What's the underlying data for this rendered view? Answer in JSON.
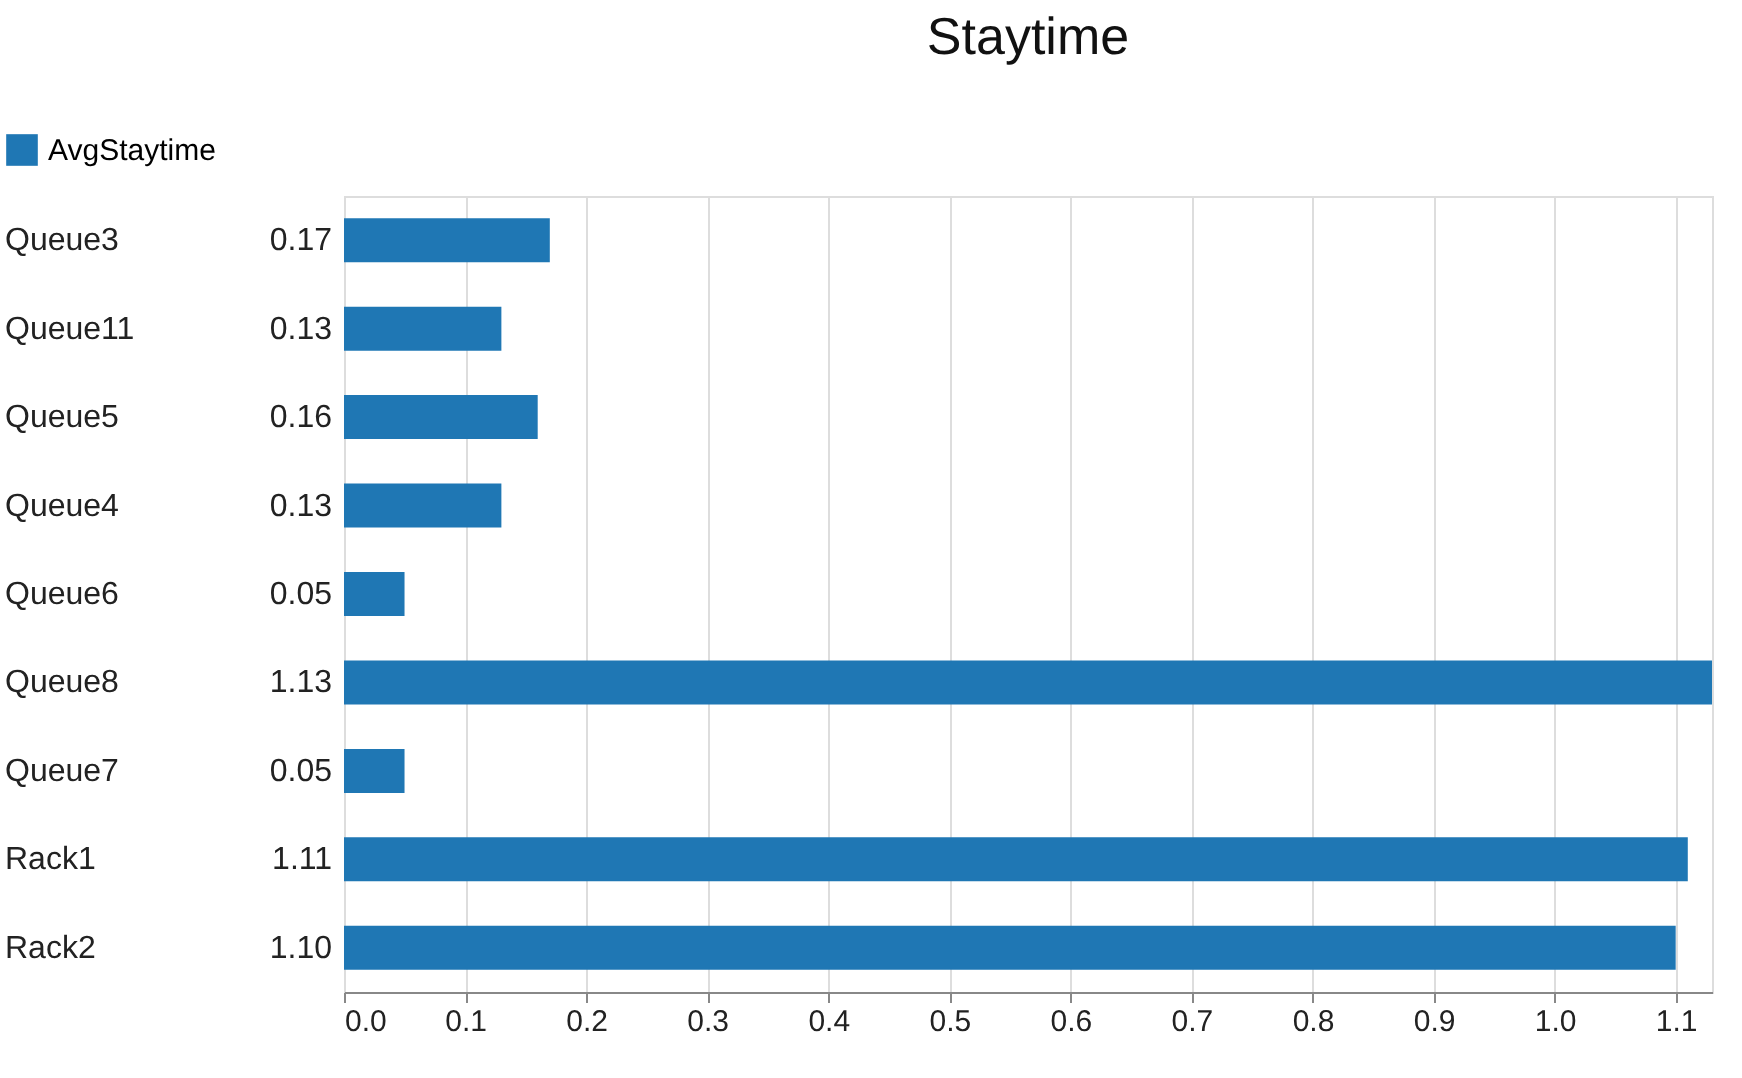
{
  "chart_data": {
    "type": "bar",
    "orientation": "horizontal",
    "title": "Staytime",
    "categories": [
      "Queue3",
      "Queue11",
      "Queue5",
      "Queue4",
      "Queue6",
      "Queue8",
      "Queue7",
      "Rack1",
      "Rack2"
    ],
    "series": [
      {
        "name": "AvgStaytime",
        "color": "#1f77b4",
        "values": [
          0.17,
          0.13,
          0.16,
          0.13,
          0.05,
          1.13,
          0.05,
          1.11,
          1.1
        ],
        "value_labels": [
          "0.17",
          "0.13",
          "0.16",
          "0.13",
          "0.05",
          "1.13",
          "0.05",
          "1.11",
          "1.10"
        ]
      }
    ],
    "xlim": [
      0,
      1.13
    ],
    "xticks": [
      {
        "value": 0,
        "label": "0.0"
      },
      0.1,
      0.2,
      0.3,
      0.4,
      0.5,
      0.6,
      0.7,
      0.8,
      0.9,
      {
        "value": 1,
        "label": "1.0"
      },
      1.1
    ],
    "grid": "x",
    "legend": "top left"
  }
}
